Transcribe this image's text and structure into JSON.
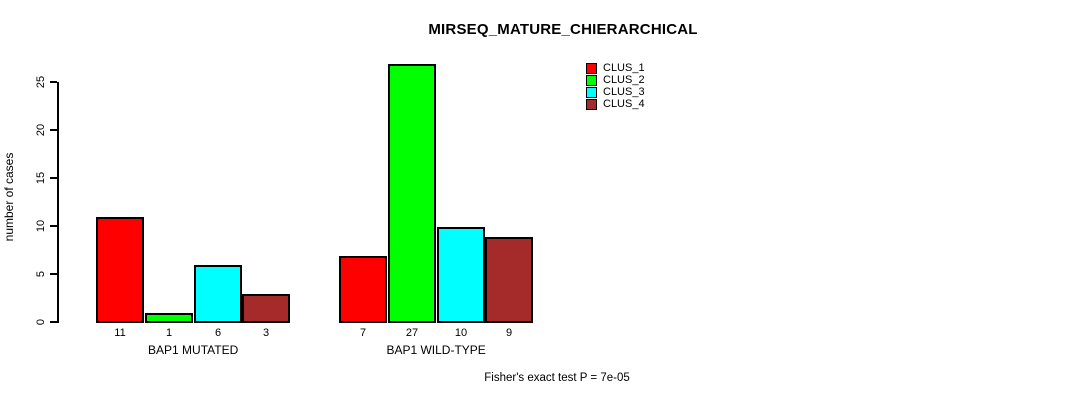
{
  "chart_data": {
    "type": "bar",
    "title": "MIRSEQ_MATURE_CHIERARCHICAL",
    "ylabel": "number of cases",
    "xlabel": "",
    "ylim": [
      0,
      27
    ],
    "yticks": [
      0,
      5,
      10,
      15,
      20,
      25
    ],
    "grid": false,
    "legend_position": "top-right",
    "categories": [
      "BAP1 MUTATED",
      "BAP1 WILD-TYPE"
    ],
    "series": [
      {
        "name": "CLUS_1",
        "color": "#FF0000",
        "values": [
          11,
          7
        ]
      },
      {
        "name": "CLUS_2",
        "color": "#00FF00",
        "values": [
          1,
          27
        ]
      },
      {
        "name": "CLUS_3",
        "color": "#00FFFF",
        "values": [
          6,
          10
        ]
      },
      {
        "name": "CLUS_4",
        "color": "#A52A2A",
        "values": [
          3,
          9
        ]
      }
    ],
    "bar_value_labels": [
      [
        11,
        1,
        6,
        3
      ],
      [
        7,
        27,
        10,
        9
      ]
    ],
    "annotation": "Fisher's exact test P = 7e-05"
  }
}
